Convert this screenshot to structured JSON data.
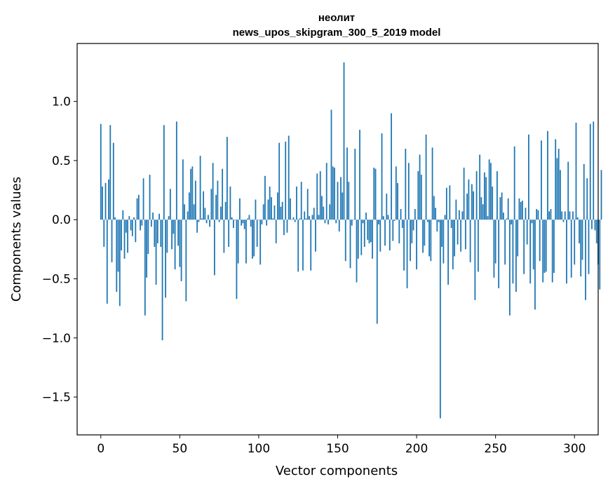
{
  "chart_data": {
    "type": "bar",
    "title_line1": "неолит",
    "title_line2": "news_upos_skipgram_300_5_2019 model",
    "xlabel": "Vector components",
    "ylabel": "Components values",
    "xlim": [
      -15,
      315
    ],
    "ylim": [
      -1.82,
      1.49
    ],
    "xticks": [
      0,
      50,
      100,
      150,
      200,
      250,
      300
    ],
    "xtick_labels": [
      "0",
      "50",
      "100",
      "150",
      "200",
      "250",
      "300"
    ],
    "yticks": [
      1.0,
      0.5,
      0.0,
      -0.5,
      -1.0,
      -1.5
    ],
    "ytick_labels": [
      "1.0",
      "0.5",
      "0.0",
      "−0.5",
      "−1.0",
      "−1.5"
    ],
    "bar_color": "#1f77b4",
    "values": [
      0.81,
      0.28,
      -0.23,
      0.31,
      -0.71,
      0.34,
      0.8,
      -0.36,
      0.65,
      0.02,
      -0.61,
      -0.44,
      -0.73,
      -0.26,
      0.08,
      -0.33,
      -0.11,
      -0.28,
      0.03,
      -0.09,
      -0.14,
      0.02,
      -0.19,
      0.18,
      0.21,
      -0.09,
      -0.05,
      0.35,
      -0.81,
      -0.49,
      -0.29,
      0.38,
      -0.06,
      0.06,
      -0.23,
      -0.55,
      -0.2,
      0.05,
      -0.23,
      -1.02,
      0.8,
      -0.66,
      -0.28,
      0.03,
      0.26,
      -0.25,
      -0.12,
      -0.42,
      0.83,
      -0.22,
      -0.4,
      -0.52,
      0.51,
      0.13,
      -0.69,
      0.07,
      0.23,
      0.43,
      0.45,
      0.13,
      0.33,
      -0.11,
      -0.02,
      0.54,
      0.01,
      0.24,
      0.1,
      -0.03,
      0.04,
      -0.06,
      0.26,
      0.48,
      -0.47,
      0.21,
      0.33,
      -0.02,
      0.11,
      0.43,
      -0.28,
      0.15,
      0.7,
      -0.23,
      0.28,
      0.02,
      -0.07,
      0.0,
      -0.67,
      -0.37,
      0.18,
      -0.05,
      -0.03,
      -0.08,
      -0.37,
      0.01,
      0.04,
      -0.06,
      -0.33,
      -0.31,
      0.17,
      -0.23,
      0.0,
      -0.38,
      -0.04,
      0.13,
      0.37,
      -0.05,
      0.17,
      0.28,
      0.19,
      0.01,
      0.12,
      -0.2,
      0.23,
      0.65,
      0.11,
      0.15,
      -0.13,
      0.66,
      -0.11,
      0.71,
      0.18,
      0.0,
      0.02,
      -0.02,
      0.28,
      -0.44,
      0.01,
      0.32,
      -0.43,
      0.07,
      0.01,
      0.26,
      0.03,
      -0.43,
      0.04,
      0.1,
      -0.27,
      0.39,
      0.04,
      0.41,
      0.2,
      0.11,
      -0.03,
      0.48,
      -0.04,
      0.13,
      0.93,
      0.45,
      0.44,
      -0.03,
      0.32,
      -0.1,
      0.36,
      0.23,
      1.33,
      -0.35,
      0.61,
      0.32,
      -0.41,
      -0.05,
      0.0,
      0.6,
      -0.53,
      -0.33,
      0.76,
      -0.3,
      -0.03,
      -0.23,
      0.06,
      -0.17,
      -0.2,
      -0.19,
      -0.33,
      0.44,
      0.43,
      -0.88,
      -0.04,
      -0.27,
      0.73,
      0.03,
      -0.22,
      0.22,
      0.04,
      -0.26,
      0.9,
      -0.18,
      -0.01,
      0.45,
      0.31,
      -0.2,
      0.09,
      -0.07,
      -0.43,
      0.6,
      -0.58,
      0.48,
      -0.35,
      -0.2,
      -0.09,
      0.09,
      -0.42,
      0.41,
      0.55,
      0.38,
      -0.28,
      -0.22,
      0.72,
      -0.02,
      -0.31,
      -0.35,
      0.61,
      0.2,
      0.1,
      -0.1,
      -0.02,
      -1.68,
      -0.23,
      -0.37,
      0.04,
      0.27,
      -0.55,
      0.29,
      -0.07,
      -0.42,
      -0.31,
      0.17,
      -0.21,
      0.08,
      -0.27,
      0.07,
      0.44,
      -0.25,
      0.22,
      0.34,
      -0.36,
      0.3,
      0.24,
      -0.68,
      0.41,
      -0.44,
      0.55,
      0.19,
      0.13,
      0.4,
      0.36,
      0.03,
      0.51,
      0.48,
      0.28,
      -0.49,
      -0.37,
      0.41,
      -0.58,
      0.19,
      0.23,
      0.06,
      -0.38,
      0.01,
      0.18,
      -0.81,
      -0.04,
      -0.54,
      0.62,
      -0.61,
      -0.31,
      0.18,
      0.15,
      0.16,
      -0.46,
      0.1,
      -0.21,
      0.72,
      -0.54,
      -0.03,
      -0.42,
      -0.76,
      0.09,
      0.08,
      -0.35,
      0.67,
      -0.53,
      -0.45,
      -0.44,
      0.75,
      0.07,
      0.09,
      -0.53,
      -0.45,
      0.68,
      0.52,
      0.6,
      0.42,
      0.07,
      -0.02,
      0.07,
      -0.54,
      0.49,
      0.07,
      -0.49,
      0.07,
      -0.38,
      0.82,
      0.02,
      -0.2,
      -0.48,
      -0.34,
      0.47,
      -0.68,
      0.35,
      -0.46,
      0.81,
      -0.08,
      0.83,
      -0.09,
      -0.2,
      -0.38,
      -0.59,
      0.42
    ]
  }
}
